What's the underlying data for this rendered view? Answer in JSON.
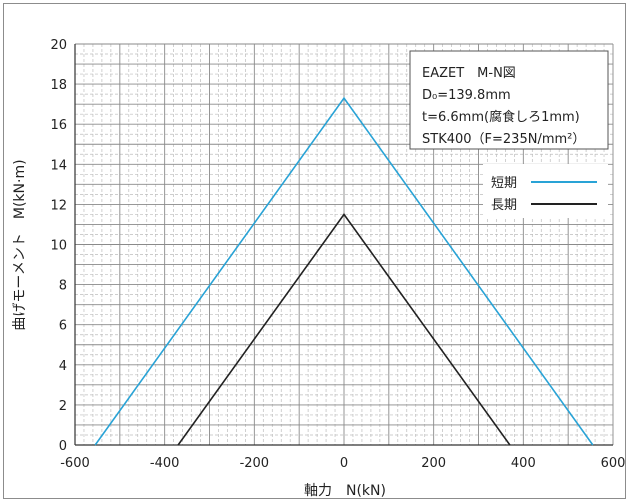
{
  "chart_data": {
    "type": "line",
    "xlabel": "軸力　N(kN)",
    "ylabel": "曲げモーメント　M(kN·m)",
    "xlim": [
      -600,
      600
    ],
    "ylim": [
      0,
      20
    ],
    "xticks": [
      "-600",
      "-400",
      "-200",
      "0",
      "200",
      "400",
      "600"
    ],
    "yticks": [
      "0",
      "2",
      "4",
      "6",
      "8",
      "10",
      "12",
      "14",
      "16",
      "18",
      "20"
    ],
    "grid": true,
    "info_box": [
      "EAZET　M-N図",
      "D₀=139.8mm",
      "t=6.6mm(腐食しろ1mm)",
      "STK400（F=235N/mm²）"
    ],
    "legend_position": "top-right",
    "series": [
      {
        "name": "短期",
        "color": "#29a3d6",
        "x": [
          -555,
          0,
          555
        ],
        "y": [
          0,
          17.3,
          0
        ]
      },
      {
        "name": "長期",
        "color": "#222222",
        "x": [
          -370,
          0,
          370
        ],
        "y": [
          0,
          11.5,
          0
        ]
      }
    ]
  }
}
